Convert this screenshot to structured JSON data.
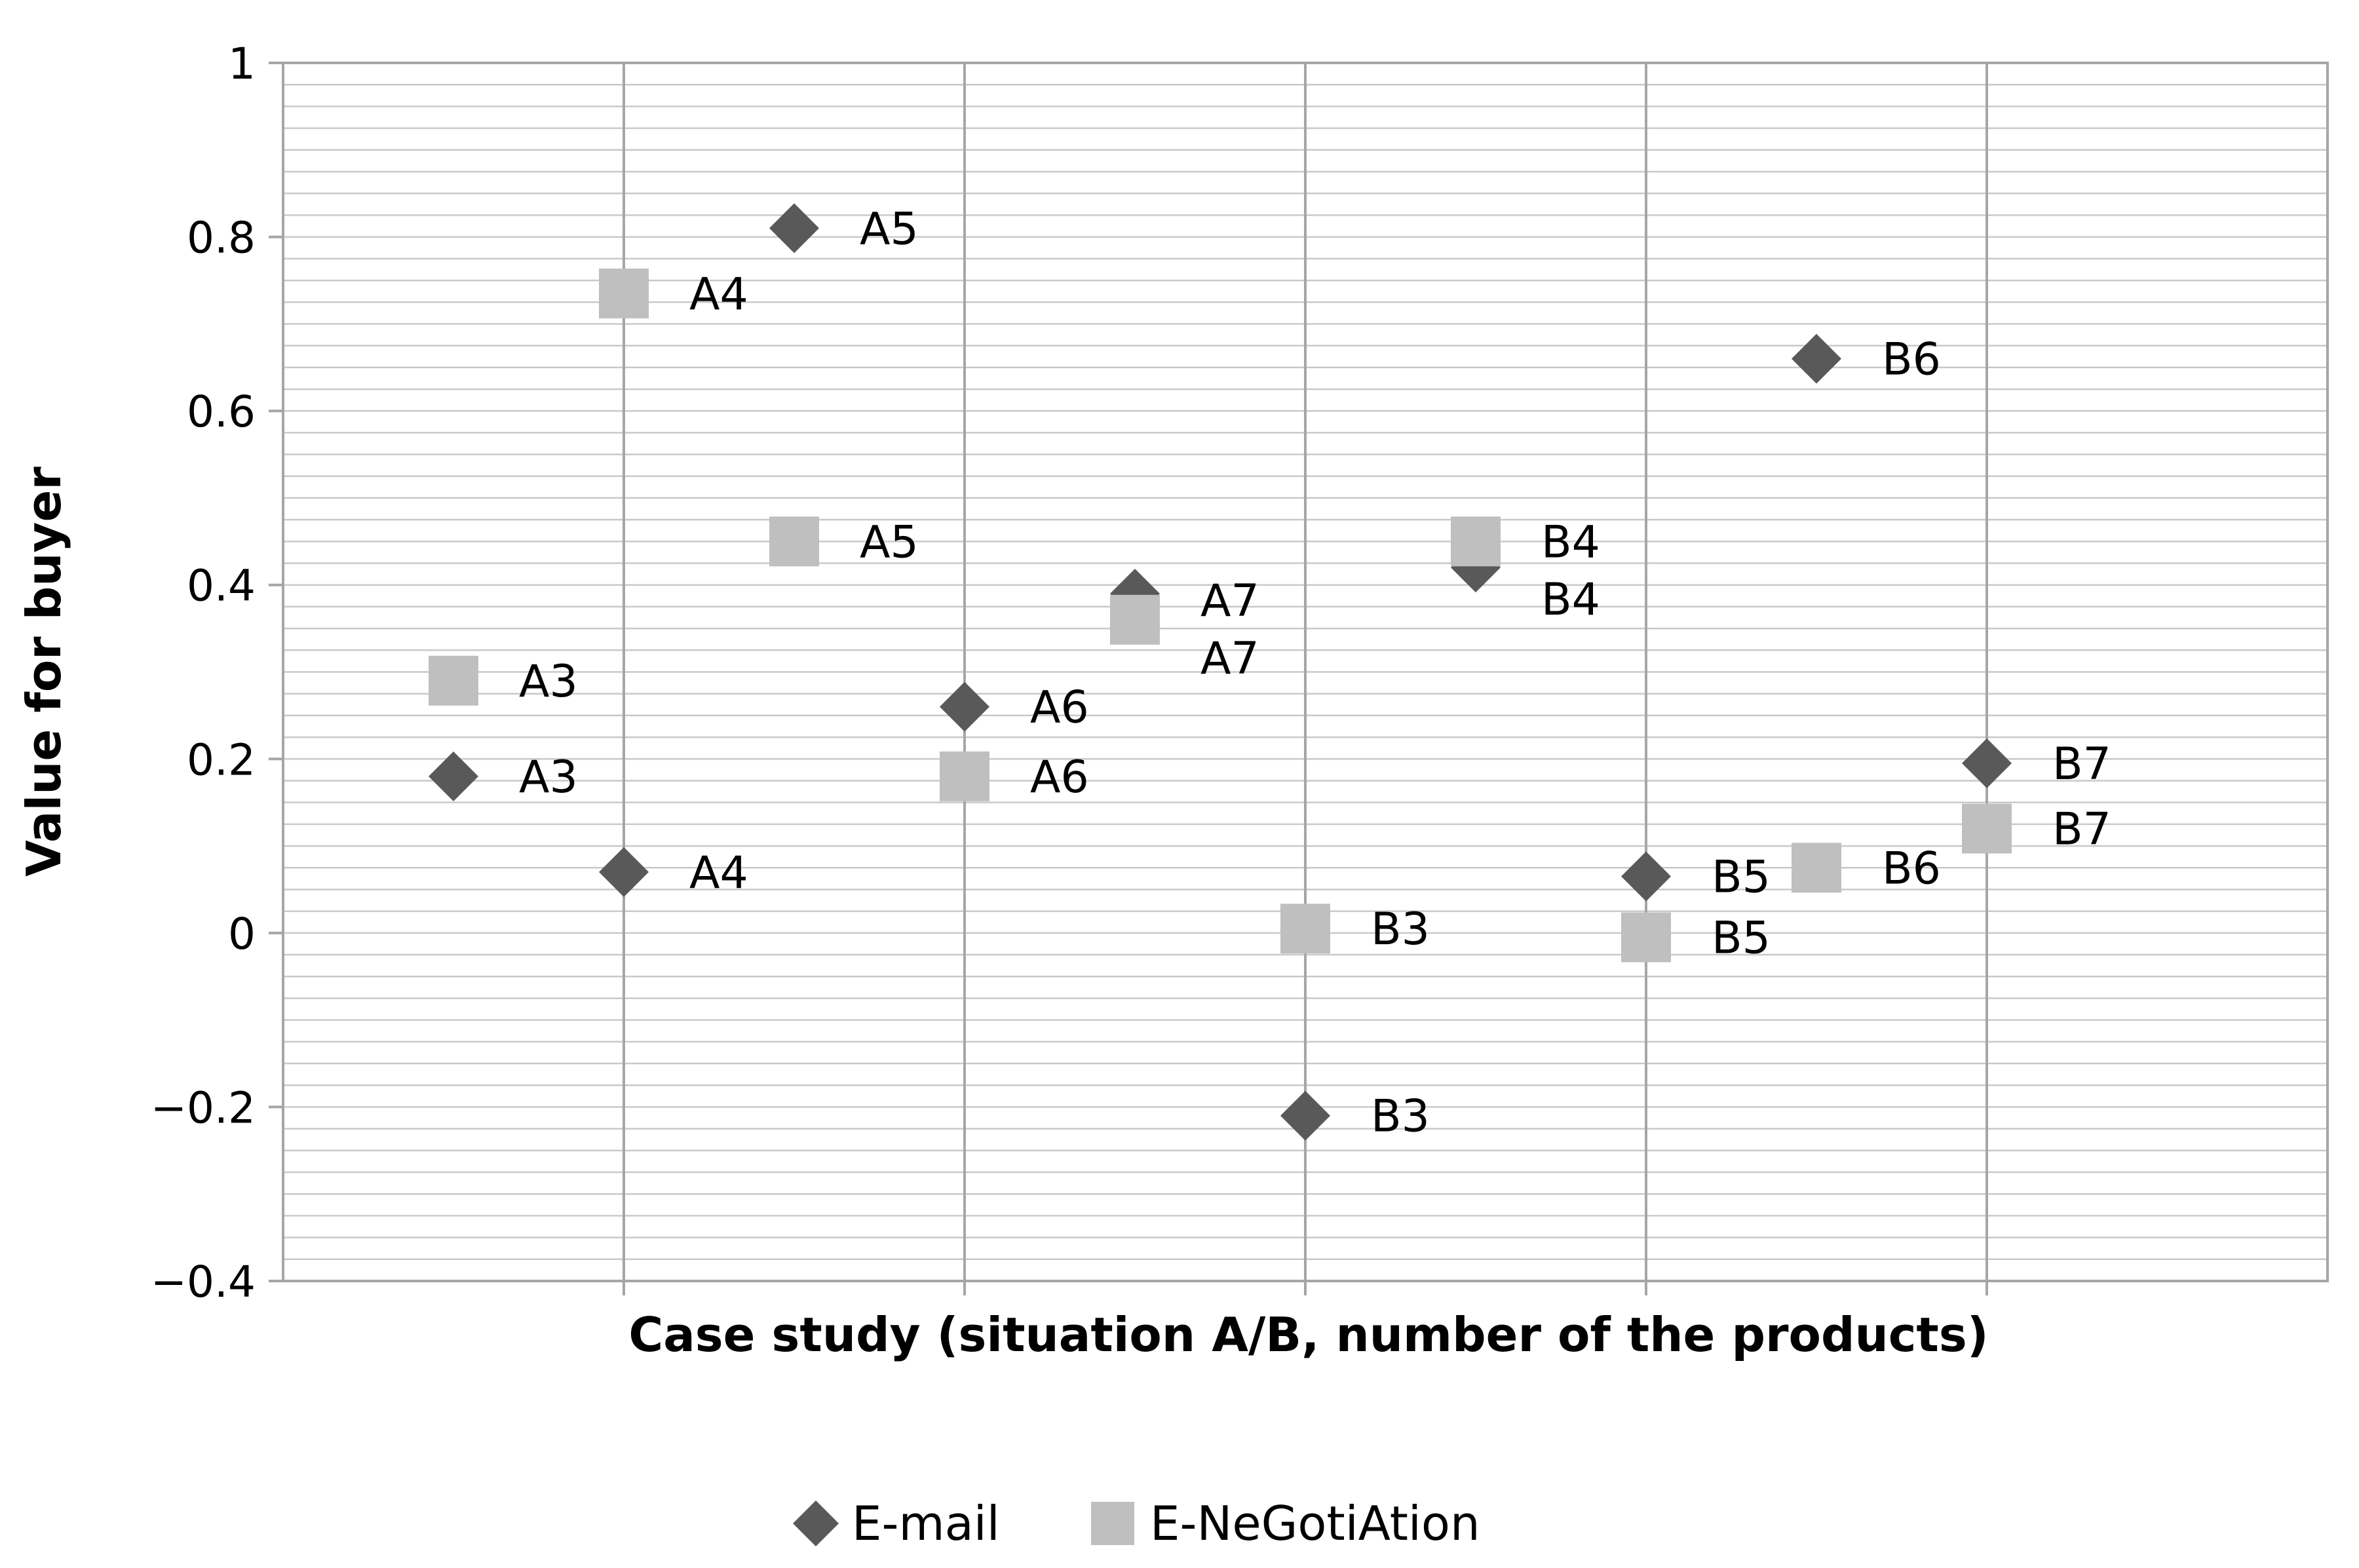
{
  "chart_data": {
    "type": "scatter",
    "xlabel": "Case study (situation A/B, number of the products)",
    "ylabel": "Value for buyer",
    "ylim": [
      -0.4,
      1
    ],
    "yticks": [
      1,
      0.8,
      0.6,
      0.4,
      0.2,
      0,
      -0.2,
      -0.4
    ],
    "ytick_labels": [
      "1",
      "0.8",
      "0.6",
      "0.4",
      "0.2",
      "0",
      "−0.2",
      "−0.4"
    ],
    "xlim": [
      0,
      12
    ],
    "grid": true,
    "legend_position": "bottom",
    "series": [
      {
        "name": "E-mail",
        "marker": "diamond",
        "color": "#595959",
        "points": [
          {
            "x": 1,
            "y": 0.18,
            "label": "A3"
          },
          {
            "x": 2,
            "y": 0.07,
            "label": "A4"
          },
          {
            "x": 3,
            "y": 0.81,
            "label": "A5"
          },
          {
            "x": 4,
            "y": 0.26,
            "label": "A6"
          },
          {
            "x": 5,
            "y": 0.39,
            "label": "A7"
          },
          {
            "x": 6,
            "y": -0.21,
            "label": "B3"
          },
          {
            "x": 7,
            "y": 0.42,
            "label": "B4"
          },
          {
            "x": 8,
            "y": 0.065,
            "label": "B5"
          },
          {
            "x": 9,
            "y": 0.66,
            "label": "B6"
          },
          {
            "x": 10,
            "y": 0.195,
            "label": "B7"
          }
        ]
      },
      {
        "name": "E-NeGotiAtion",
        "marker": "square",
        "color": "#bfbfbf",
        "points": [
          {
            "x": 1,
            "y": 0.29,
            "label": "A3"
          },
          {
            "x": 2,
            "y": 0.735,
            "label": "A4"
          },
          {
            "x": 3,
            "y": 0.45,
            "label": "A5"
          },
          {
            "x": 4,
            "y": 0.18,
            "label": "A6"
          },
          {
            "x": 5,
            "y": 0.36,
            "label": "A7"
          },
          {
            "x": 6,
            "y": 0.005,
            "label": "B3"
          },
          {
            "x": 7,
            "y": 0.45,
            "label": "B4"
          },
          {
            "x": 8,
            "y": -0.005,
            "label": "B5"
          },
          {
            "x": 9,
            "y": 0.075,
            "label": "B6"
          },
          {
            "x": 10,
            "y": 0.12,
            "label": "B7"
          }
        ]
      }
    ]
  }
}
